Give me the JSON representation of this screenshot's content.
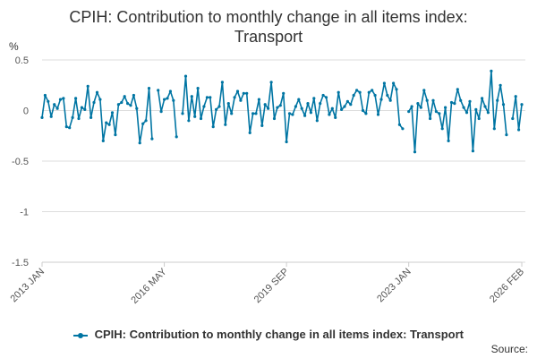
{
  "title": "CPIH: Contribution to monthly change in all items index:\nTransport",
  "unit": "%",
  "source": "Source:",
  "legend": {
    "series_name": "CPIH: Contribution to monthly change in all items index: Transport"
  },
  "colors": {
    "series": "#0075A3",
    "grid": "#dddddd",
    "axis": "#cccccc"
  },
  "chart_data": {
    "type": "line",
    "title": "CPIH: Contribution to monthly change in all items index: Transport",
    "ylabel": "%",
    "xlabel": "",
    "ylim": [
      -1.5,
      0.5
    ],
    "yticks": [
      0.5,
      0,
      -0.5,
      -1,
      -1.5
    ],
    "ytick_labels": [
      "0.5",
      "0",
      "-0.5",
      "-1",
      "-1.5"
    ],
    "x_start": "2013 JAN",
    "x_end": "2026 FEB",
    "xtick_labels": [
      {
        "label": "2013 JAN",
        "index": 0
      },
      {
        "label": "2016 MAY",
        "index": 40
      },
      {
        "label": "2019 SEP",
        "index": 80
      },
      {
        "label": "2023 JAN",
        "index": 120
      },
      {
        "label": "2026 FEB",
        "index": 157
      }
    ],
    "grid": true,
    "legend_position": "bottom",
    "series": [
      {
        "name": "CPIH: Contribution to monthly change in all items index: Transport",
        "values": [
          -0.07,
          0.15,
          0.09,
          -0.06,
          0.06,
          0.02,
          0.11,
          0.12,
          -0.16,
          -0.17,
          -0.07,
          0.12,
          -0.08,
          0.03,
          0.01,
          0.24,
          -0.07,
          0.08,
          0.18,
          0.11,
          -0.3,
          -0.12,
          -0.14,
          -0.02,
          -0.24,
          0.06,
          0.08,
          0.14,
          0.07,
          0.05,
          0.15,
          0.02,
          -0.32,
          -0.13,
          -0.1,
          0.22,
          -0.28,
          null,
          0.2,
          -0.01,
          0.11,
          0.12,
          0.19,
          0.1,
          -0.26,
          null,
          -0.03,
          0.34,
          -0.1,
          0.14,
          -0.06,
          0.22,
          -0.08,
          0.04,
          0.13,
          0.13,
          -0.16,
          0.01,
          0.04,
          0.28,
          -0.14,
          0.07,
          -0.03,
          0.13,
          0.19,
          0.1,
          0.17,
          0.17,
          -0.22,
          -0.03,
          -0.03,
          0.11,
          -0.15,
          0.06,
          0.02,
          0.28,
          -0.08,
          0.03,
          0.05,
          0.17,
          -0.31,
          -0.03,
          -0.04,
          0.04,
          0.11,
          0.02,
          -0.05,
          0.07,
          -0.02,
          0.12,
          -0.1,
          0.07,
          0.15,
          0.13,
          -0.04,
          0.02,
          -0.07,
          0.18,
          0.01,
          0.04,
          0.09,
          0.06,
          0.15,
          0.2,
          0.18,
          0.0,
          -0.03,
          0.18,
          0.2,
          0.15,
          -0.04,
          0.11,
          0.27,
          0.15,
          0.1,
          0.27,
          0.21,
          -0.14,
          -0.18,
          null,
          -0.01,
          0.04,
          -0.41,
          0.07,
          0.03,
          0.2,
          0.1,
          -0.08,
          0.1,
          -0.01,
          -0.03,
          -0.18,
          0.03,
          -0.3,
          0.08,
          0.07,
          0.21,
          0.1,
          0.03,
          -0.02,
          0.09,
          -0.4,
          0.01,
          -0.08,
          0.12,
          0.04,
          -0.02,
          0.39,
          -0.18,
          0.1,
          0.25,
          0.06,
          -0.24,
          null,
          -0.08,
          0.14,
          -0.19,
          0.06
        ]
      }
    ]
  }
}
